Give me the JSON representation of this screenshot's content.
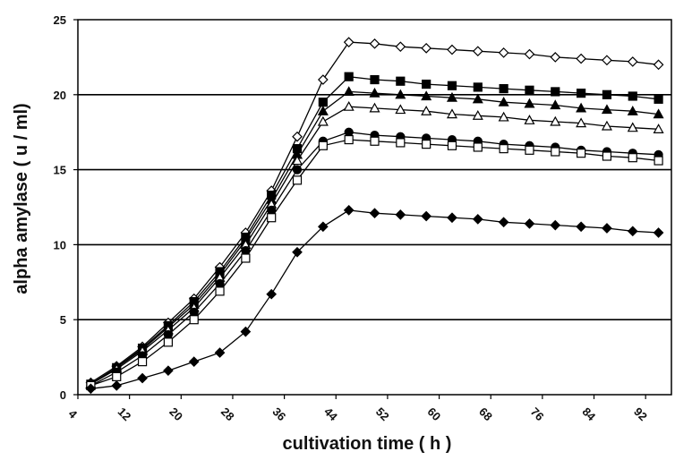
{
  "chart_data": {
    "type": "line",
    "title": "",
    "xlabel": "cultivation time ( h )",
    "ylabel": "alpha amylase ( u / ml)",
    "xlim": [
      4,
      96
    ],
    "ylim": [
      0,
      25
    ],
    "x_ticks": [
      "4",
      "12",
      "20",
      "28",
      "36",
      "44",
      "52",
      "60",
      "68",
      "76",
      "84",
      "92"
    ],
    "y_ticks": [
      "0",
      "5",
      "10",
      "15",
      "20",
      "25"
    ],
    "grid": "horizontal",
    "x": [
      6,
      10,
      14,
      18,
      22,
      26,
      30,
      34,
      38,
      42,
      46,
      50,
      54,
      58,
      62,
      66,
      70,
      74,
      78,
      82,
      86,
      90,
      94
    ],
    "series": [
      {
        "name": "open diamond",
        "marker": "diamond-open",
        "values": [
          0.8,
          1.9,
          3.2,
          4.8,
          6.4,
          8.5,
          10.8,
          13.6,
          17.2,
          21.0,
          23.5,
          23.4,
          23.2,
          23.1,
          23.0,
          22.9,
          22.8,
          22.7,
          22.5,
          22.4,
          22.3,
          22.2,
          22.0
        ]
      },
      {
        "name": "filled square",
        "marker": "square-filled",
        "values": [
          0.7,
          1.8,
          3.1,
          4.6,
          6.2,
          8.2,
          10.5,
          13.3,
          16.4,
          19.5,
          21.2,
          21.0,
          20.9,
          20.7,
          20.6,
          20.5,
          20.4,
          20.3,
          20.2,
          20.1,
          20.0,
          19.9,
          19.7
        ]
      },
      {
        "name": "filled triangle",
        "marker": "triangle-filled",
        "values": [
          0.7,
          1.8,
          3.0,
          4.5,
          6.0,
          8.0,
          10.3,
          13.0,
          16.0,
          18.9,
          20.2,
          20.1,
          20.0,
          19.9,
          19.8,
          19.7,
          19.5,
          19.4,
          19.3,
          19.1,
          19.0,
          18.9,
          18.7
        ]
      },
      {
        "name": "open triangle",
        "marker": "triangle-open",
        "values": [
          0.7,
          1.7,
          2.9,
          4.3,
          5.8,
          7.8,
          10.0,
          12.7,
          15.6,
          18.2,
          19.2,
          19.1,
          19.0,
          18.9,
          18.7,
          18.6,
          18.5,
          18.3,
          18.2,
          18.1,
          17.9,
          17.8,
          17.7
        ]
      },
      {
        "name": "filled circle",
        "marker": "circle-filled",
        "values": [
          0.6,
          1.5,
          2.6,
          4.0,
          5.5,
          7.4,
          9.6,
          12.3,
          15.0,
          16.9,
          17.5,
          17.3,
          17.2,
          17.1,
          17.0,
          16.9,
          16.7,
          16.6,
          16.5,
          16.3,
          16.2,
          16.1,
          16.0
        ]
      },
      {
        "name": "open square",
        "marker": "square-open",
        "values": [
          0.6,
          1.2,
          2.2,
          3.5,
          5.0,
          6.9,
          9.1,
          11.8,
          14.3,
          16.6,
          17.0,
          16.9,
          16.8,
          16.7,
          16.6,
          16.5,
          16.4,
          16.3,
          16.2,
          16.1,
          15.9,
          15.8,
          15.6
        ]
      },
      {
        "name": "filled diamond",
        "marker": "diamond-filled",
        "values": [
          0.4,
          0.6,
          1.1,
          1.6,
          2.2,
          2.8,
          4.2,
          6.7,
          9.5,
          11.2,
          12.3,
          12.1,
          12.0,
          11.9,
          11.8,
          11.7,
          11.5,
          11.4,
          11.3,
          11.2,
          11.1,
          10.9,
          10.8
        ]
      }
    ]
  }
}
